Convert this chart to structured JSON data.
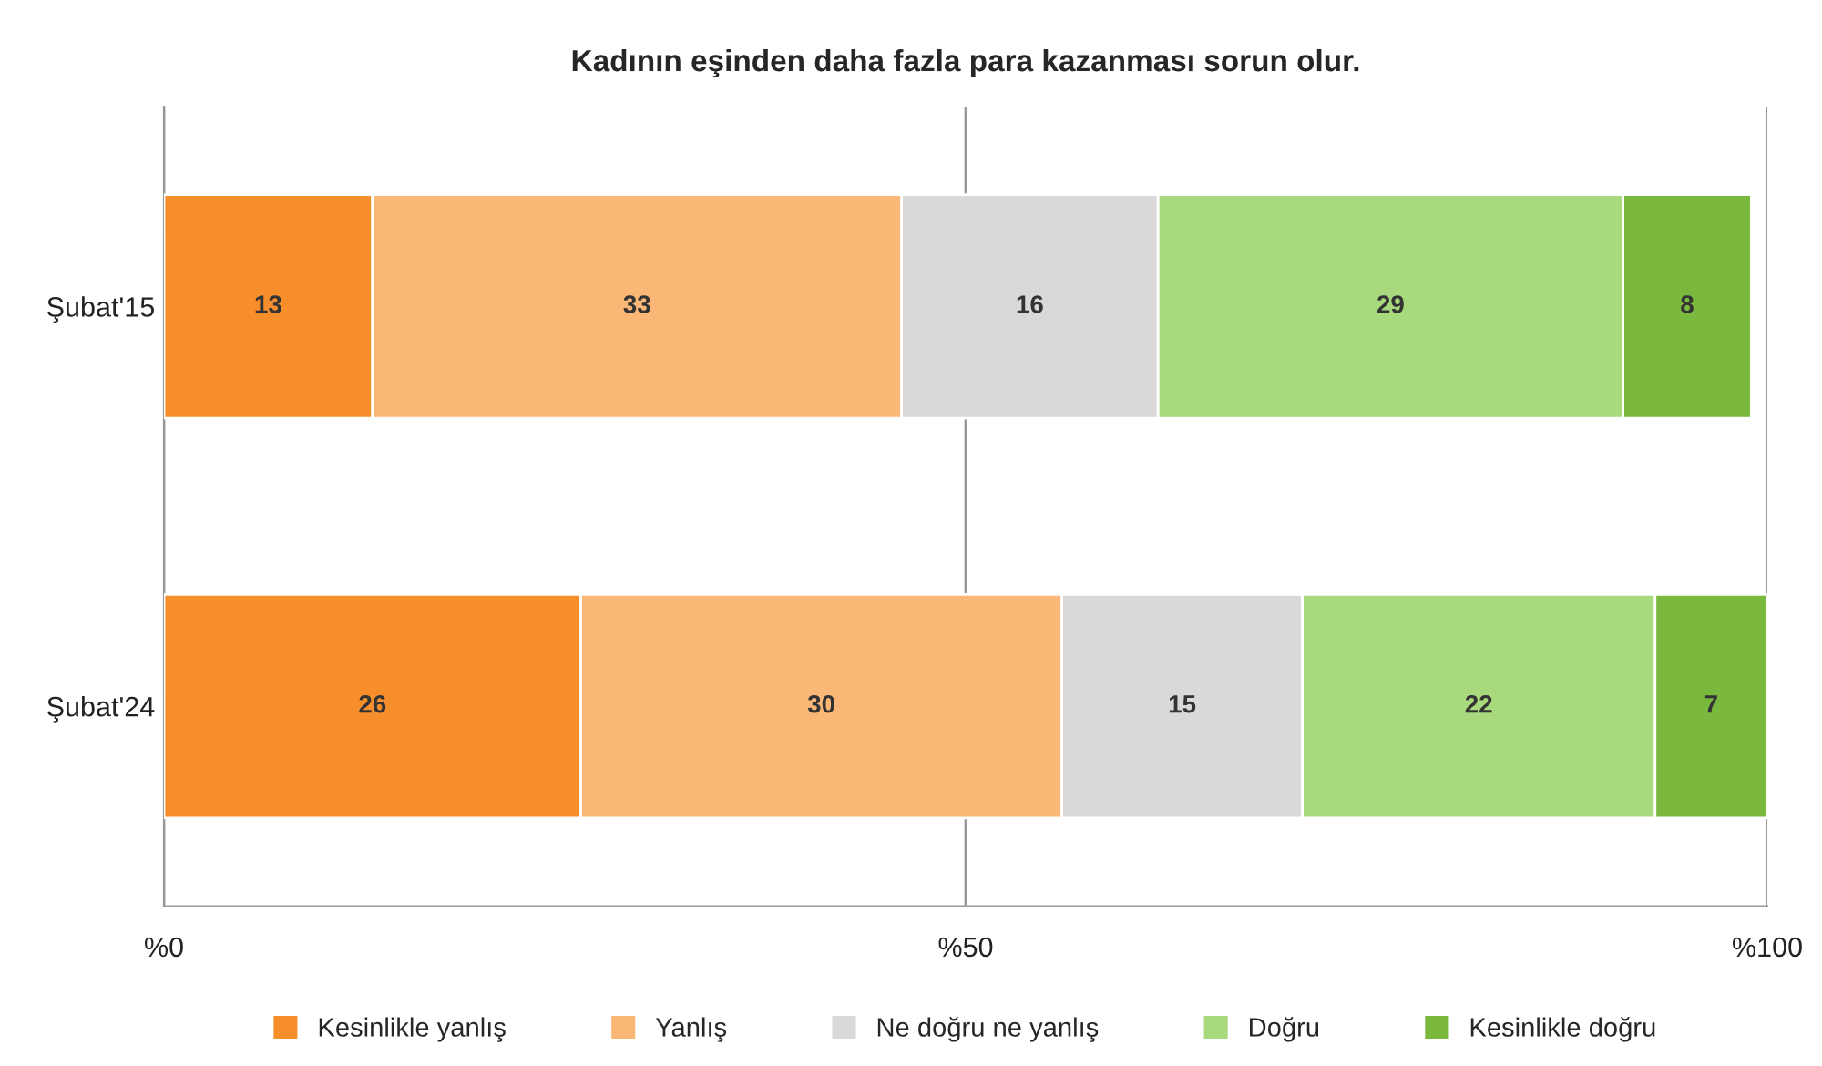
{
  "chart_data": {
    "type": "bar",
    "orientation": "horizontal",
    "stacked": true,
    "title": "Kadının eşinden daha fazla para kazanması sorun olur.",
    "categories": [
      "Şubat'15",
      "Şubat'24"
    ],
    "series": [
      {
        "name": "Kesinlikle yanlış",
        "color": "#f68e2c",
        "values": [
          13,
          26
        ]
      },
      {
        "name": "Yanlış",
        "color": "#fbb775",
        "values": [
          33,
          30
        ]
      },
      {
        "name": "Ne doğru ne yanlış",
        "color": "#d9d9d9",
        "values": [
          16,
          15
        ]
      },
      {
        "name": "Doğru",
        "color": "#a8d97c",
        "values": [
          29,
          22
        ]
      },
      {
        "name": "Kesinlikle doğru",
        "color": "#7ab93e",
        "values": [
          8,
          7
        ]
      }
    ],
    "xlim": [
      0,
      100
    ],
    "xticks": [
      {
        "value": 0,
        "label": "%0"
      },
      {
        "value": 50,
        "label": "%50"
      },
      {
        "value": 100,
        "label": "%100"
      }
    ],
    "grid": "x",
    "legend": "bottom",
    "data_labels": true
  }
}
